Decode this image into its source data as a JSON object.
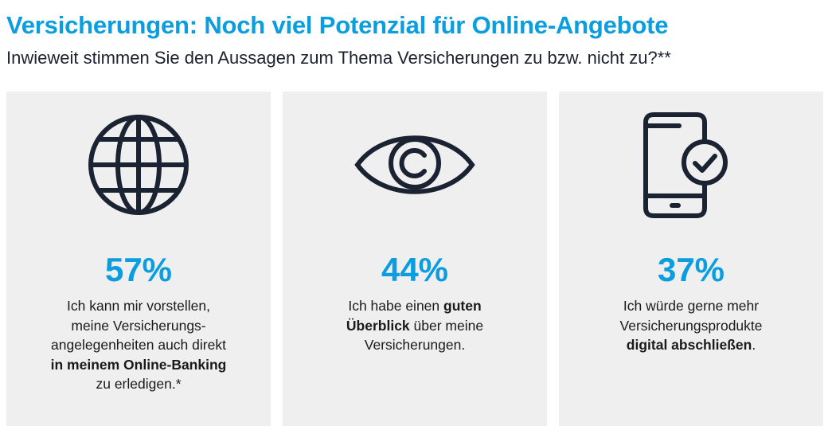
{
  "header": {
    "title": "Versicherungen: Noch viel Potenzial für Online-Angebote",
    "subtitle": "Inwieweit stimmen Sie den Aussagen zum Thema Versicherungen zu bzw. nicht zu?**"
  },
  "colors": {
    "accent": "#0a9ee0",
    "icon": "#1b2232",
    "card_bg": "#efefef"
  },
  "cards": [
    {
      "icon": "globe-icon",
      "percent": "57%",
      "text": {
        "l1": "Ich kann mir vorstellen,",
        "l2": "meine Versicherungs-",
        "l3": "angelegenheiten auch direkt",
        "l4_bold": "in meinem Online-Banking",
        "l5": "zu erledigen.*"
      }
    },
    {
      "icon": "eye-icon",
      "percent": "44%",
      "text": {
        "l1_pre": "Ich habe einen ",
        "l1_bold": "guten",
        "l2_bold": "Überblick",
        "l2_post": " über meine",
        "l3": "Versicherungen."
      }
    },
    {
      "icon": "smartphone-check-icon",
      "percent": "37%",
      "text": {
        "l1": "Ich würde gerne mehr",
        "l2": "Versicherungsprodukte",
        "l3_bold": "digital abschließen",
        "l3_post": "."
      }
    }
  ]
}
